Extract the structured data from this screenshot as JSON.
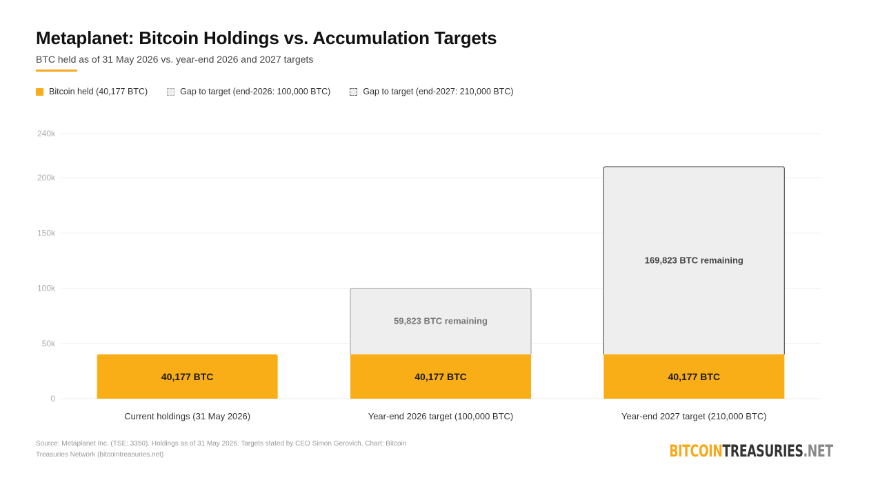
{
  "header": {
    "title": "Metaplanet: Bitcoin Holdings vs. Accumulation Targets",
    "subtitle": "BTC held as of 31 May 2026 vs. year-end 2026 and 2027 targets"
  },
  "legend": {
    "held": "Bitcoin held (40,177 BTC)",
    "gap_2026": "Gap to target (end-2026: 100,000 BTC)",
    "gap_2027": "Gap to target (end-2027: 210,000 BTC)"
  },
  "footer": {
    "source": "Source: Metaplanet Inc. (TSE: 3350). Holdings as of 31 May 2026. Targets stated by CEO Simon Gerovich. Chart: Bitcoin Treasuries Network (bitcointreasuries.net)",
    "brand_part1": "BITCOIN",
    "brand_part2": "TREASURIES",
    "brand_part3": ".NET"
  },
  "colors": {
    "held": "#F9AE18",
    "gap_fill": "#eeeeee",
    "gap_2026_stroke": "#aaaaaa",
    "gap_2027_stroke": "#555555",
    "grid": "#eeeeee",
    "axis_text": "#aaaaaa"
  },
  "chart_data": {
    "type": "bar",
    "stacked": true,
    "categories": [
      "Current holdings (31 May 2026)",
      "Year-end 2026 target (100,000 BTC)",
      "Year-end 2027 target (210,000 BTC)"
    ],
    "series": [
      {
        "name": "Bitcoin held (40,177 BTC)",
        "values": [
          40177,
          40177,
          40177
        ],
        "labels": [
          "40,177 BTC",
          "40,177 BTC",
          "40,177 BTC"
        ]
      },
      {
        "name": "Gap to target",
        "values": [
          0,
          59823,
          169823
        ],
        "labels": [
          "",
          "59,823 BTC remaining",
          "169,823 BTC remaining"
        ]
      }
    ],
    "y_ticks": [
      0,
      50000,
      100000,
      150000,
      200000,
      240000
    ],
    "y_tick_labels": [
      "0",
      "50k",
      "100k",
      "150k",
      "200k",
      "240k"
    ],
    "ylim": [
      0,
      240000
    ],
    "grid": true,
    "legend_position": "top-left"
  }
}
